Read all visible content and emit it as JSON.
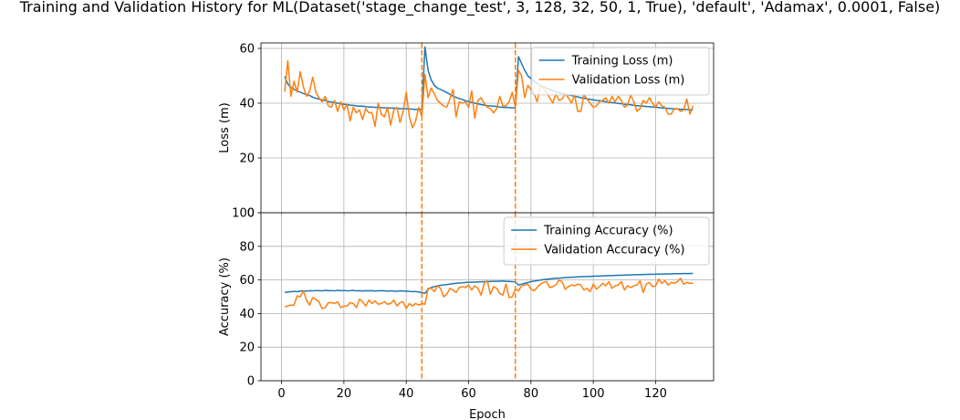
{
  "figure": {
    "title": "Training and Validation History for ML(Dataset('stage_change_test', 3, 128, 32, 50, 1, True), 'default', 'Adamax', 0.0001, False)"
  },
  "colors": {
    "training": "#1f77b4",
    "validation": "#ff7f0e",
    "stage_marker": "#ff7f0e",
    "grid": "#b0b0b0"
  },
  "chart_data": [
    {
      "type": "line",
      "ylabel": "Loss (m)",
      "xlabel": "",
      "xlim": [
        -6.6,
        138.6
      ],
      "ylim": [
        0,
        62
      ],
      "x_ticks": [
        0,
        20,
        40,
        60,
        80,
        100,
        120
      ],
      "y_ticks": [
        0,
        20,
        40,
        60
      ],
      "grid": true,
      "legend_position": "upper right",
      "vertical_markers": [
        45,
        75
      ],
      "x": [
        1,
        2,
        3,
        4,
        5,
        6,
        7,
        8,
        9,
        10,
        11,
        12,
        13,
        14,
        15,
        16,
        17,
        18,
        19,
        20,
        21,
        22,
        23,
        24,
        25,
        26,
        27,
        28,
        29,
        30,
        31,
        32,
        33,
        34,
        35,
        36,
        37,
        38,
        39,
        40,
        41,
        42,
        43,
        44,
        45,
        46,
        47,
        48,
        49,
        50,
        51,
        52,
        53,
        54,
        55,
        56,
        57,
        58,
        59,
        60,
        61,
        62,
        63,
        64,
        65,
        66,
        67,
        68,
        69,
        70,
        71,
        72,
        73,
        74,
        75,
        76,
        77,
        78,
        79,
        80,
        81,
        82,
        83,
        84,
        85,
        86,
        87,
        88,
        89,
        90,
        91,
        92,
        93,
        94,
        95,
        96,
        97,
        98,
        99,
        100,
        101,
        102,
        103,
        104,
        105,
        106,
        107,
        108,
        109,
        110,
        111,
        112,
        113,
        114,
        115,
        116,
        117,
        118,
        119,
        120,
        121,
        122,
        123,
        124,
        125,
        126,
        127,
        128,
        129,
        130,
        131,
        132
      ],
      "series": [
        {
          "name": "Training Loss (m)",
          "values": [
            49.8,
            47.0,
            45.7,
            45.0,
            44.5,
            44.0,
            43.5,
            43.2,
            42.8,
            42.2,
            41.8,
            41.5,
            41.2,
            41.0,
            40.6,
            40.4,
            40.2,
            40.0,
            39.8,
            39.6,
            39.5,
            39.3,
            39.2,
            39.0,
            38.9,
            38.9,
            38.7,
            38.6,
            38.6,
            38.5,
            38.4,
            38.4,
            38.3,
            38.3,
            38.2,
            38.2,
            38.1,
            38.0,
            38.0,
            37.9,
            37.9,
            37.8,
            37.7,
            37.8,
            37.7,
            60.5,
            52.0,
            48.5,
            46.5,
            45.5,
            45.0,
            44.5,
            43.9,
            43.2,
            42.6,
            42.1,
            41.7,
            41.3,
            40.9,
            40.6,
            40.3,
            40.0,
            39.8,
            39.5,
            39.3,
            39.1,
            39.0,
            38.9,
            38.8,
            38.6,
            38.5,
            38.4,
            38.4,
            38.3,
            38.3,
            57.0,
            54.5,
            52.0,
            50.0,
            49.0,
            48.0,
            47.2,
            46.5,
            46.0,
            45.5,
            45.0,
            44.6,
            44.2,
            43.9,
            43.6,
            43.3,
            43.0,
            42.8,
            42.5,
            42.3,
            42.0,
            41.8,
            41.6,
            41.4,
            41.2,
            41.0,
            40.9,
            40.7,
            40.5,
            40.4,
            40.2,
            40.1,
            39.9,
            39.8,
            39.6,
            39.5,
            39.4,
            39.2,
            39.1,
            39.0,
            38.9,
            38.8,
            38.7,
            38.6,
            38.5,
            38.4,
            38.3,
            38.2,
            38.1,
            38.0,
            37.9,
            37.9,
            37.8,
            37.7,
            37.7,
            37.6,
            37.5
          ]
        },
        {
          "name": "Validation Loss (m)",
          "values": [
            44.2,
            55.5,
            42.5,
            48.0,
            44.0,
            51.5,
            46.0,
            42.5,
            44.5,
            49.5,
            44.0,
            42.0,
            40.5,
            42.5,
            39.0,
            38.5,
            41.0,
            37.0,
            40.5,
            37.5,
            39.5,
            33.5,
            38.5,
            36.5,
            37.5,
            34.0,
            38.0,
            36.5,
            36.5,
            31.5,
            40.0,
            36.0,
            35.0,
            38.5,
            32.0,
            37.5,
            38.5,
            33.0,
            37.0,
            44.0,
            35.0,
            31.0,
            33.5,
            38.5,
            35.0,
            50.5,
            42.0,
            45.5,
            43.5,
            41.0,
            40.0,
            39.0,
            38.5,
            41.5,
            45.0,
            35.0,
            40.5,
            40.0,
            40.5,
            38.5,
            44.5,
            34.5,
            41.0,
            42.0,
            40.0,
            38.5,
            38.0,
            36.5,
            38.0,
            42.5,
            39.0,
            39.0,
            40.5,
            44.0,
            38.5,
            52.0,
            50.0,
            42.0,
            46.5,
            45.0,
            43.5,
            40.5,
            46.5,
            45.5,
            44.0,
            42.0,
            40.0,
            43.5,
            41.0,
            41.5,
            43.5,
            42.0,
            40.0,
            43.0,
            37.0,
            37.0,
            43.0,
            41.5,
            40.0,
            38.5,
            39.0,
            40.5,
            41.0,
            42.0,
            40.0,
            42.5,
            40.5,
            42.5,
            41.0,
            38.5,
            39.5,
            43.0,
            40.5,
            37.0,
            38.0,
            41.0,
            40.0,
            42.0,
            40.0,
            38.5,
            40.5,
            39.0,
            38.5,
            36.0,
            36.0,
            38.0,
            38.0,
            37.0,
            37.5,
            41.5,
            36.0,
            39.0
          ]
        }
      ]
    },
    {
      "type": "line",
      "ylabel": "Accuracy (%)",
      "xlabel": "Epoch",
      "xlim": [
        -6.6,
        138.6
      ],
      "ylim": [
        0,
        100
      ],
      "x_ticks": [
        0,
        20,
        40,
        60,
        80,
        100,
        120
      ],
      "y_ticks": [
        0,
        20,
        40,
        60,
        80,
        100
      ],
      "grid": true,
      "legend_position": "upper right",
      "vertical_markers": [
        45,
        75
      ],
      "x": [
        1,
        2,
        3,
        4,
        5,
        6,
        7,
        8,
        9,
        10,
        11,
        12,
        13,
        14,
        15,
        16,
        17,
        18,
        19,
        20,
        21,
        22,
        23,
        24,
        25,
        26,
        27,
        28,
        29,
        30,
        31,
        32,
        33,
        34,
        35,
        36,
        37,
        38,
        39,
        40,
        41,
        42,
        43,
        44,
        45,
        46,
        47,
        48,
        49,
        50,
        51,
        52,
        53,
        54,
        55,
        56,
        57,
        58,
        59,
        60,
        61,
        62,
        63,
        64,
        65,
        66,
        67,
        68,
        69,
        70,
        71,
        72,
        73,
        74,
        75,
        76,
        77,
        78,
        79,
        80,
        81,
        82,
        83,
        84,
        85,
        86,
        87,
        88,
        89,
        90,
        91,
        92,
        93,
        94,
        95,
        96,
        97,
        98,
        99,
        100,
        101,
        102,
        103,
        104,
        105,
        106,
        107,
        108,
        109,
        110,
        111,
        112,
        113,
        114,
        115,
        116,
        117,
        118,
        119,
        120,
        121,
        122,
        123,
        124,
        125,
        126,
        127,
        128,
        129,
        130,
        131,
        132
      ],
      "series": [
        {
          "name": "Training Accuracy (%)",
          "values": [
            52.5,
            52.8,
            53.0,
            53.2,
            53.0,
            53.4,
            53.5,
            53.3,
            53.6,
            53.5,
            53.7,
            53.6,
            53.5,
            53.8,
            53.6,
            53.7,
            53.5,
            53.8,
            53.6,
            53.7,
            53.5,
            53.6,
            53.8,
            53.5,
            53.6,
            53.4,
            53.6,
            53.5,
            53.6,
            53.4,
            53.5,
            53.6,
            53.5,
            53.3,
            53.5,
            53.4,
            53.2,
            53.5,
            53.4,
            53.3,
            53.2,
            53.0,
            53.1,
            52.8,
            52.5,
            52.0,
            54.5,
            55.5,
            56.0,
            56.5,
            56.8,
            57.0,
            57.3,
            57.5,
            57.8,
            58.0,
            58.2,
            58.3,
            58.5,
            58.6,
            58.6,
            58.7,
            58.8,
            58.9,
            59.0,
            59.0,
            59.1,
            59.2,
            59.2,
            59.3,
            59.3,
            59.2,
            59.1,
            59.0,
            58.8,
            57.0,
            57.5,
            58.0,
            58.5,
            59.0,
            59.3,
            59.6,
            59.9,
            60.2,
            60.4,
            60.6,
            60.8,
            61.0,
            61.1,
            61.2,
            61.4,
            61.5,
            61.6,
            61.7,
            61.8,
            61.9,
            62.0,
            62.0,
            62.1,
            62.2,
            62.3,
            62.3,
            62.4,
            62.5,
            62.6,
            62.6,
            62.7,
            62.8,
            62.8,
            62.9,
            63.0,
            63.0,
            63.1,
            63.1,
            63.2,
            63.2,
            63.3,
            63.3,
            63.4,
            63.4,
            63.5,
            63.5,
            63.5,
            63.6,
            63.6,
            63.7,
            63.7,
            63.7,
            63.8,
            63.8,
            63.8,
            63.9
          ]
        },
        {
          "name": "Validation Accuracy (%)",
          "values": [
            44.0,
            44.5,
            45.0,
            45.0,
            50.5,
            50.0,
            53.5,
            48.0,
            45.0,
            49.5,
            48.5,
            47.0,
            43.0,
            43.5,
            46.5,
            46.5,
            46.0,
            47.0,
            43.5,
            44.5,
            44.5,
            46.5,
            46.0,
            43.5,
            48.5,
            47.0,
            44.5,
            48.0,
            46.0,
            47.5,
            45.5,
            46.0,
            47.0,
            45.5,
            46.0,
            48.0,
            44.5,
            46.5,
            47.0,
            43.0,
            46.0,
            44.5,
            46.0,
            45.0,
            46.0,
            45.5,
            55.0,
            55.0,
            53.0,
            56.5,
            55.0,
            50.0,
            51.5,
            55.0,
            54.0,
            52.5,
            55.5,
            56.0,
            55.5,
            57.0,
            54.0,
            56.5,
            55.0,
            51.0,
            58.0,
            59.5,
            51.5,
            56.0,
            55.0,
            52.0,
            51.0,
            57.5,
            49.5,
            50.0,
            54.5,
            53.5,
            56.5,
            57.0,
            57.5,
            54.5,
            53.5,
            55.5,
            57.5,
            58.5,
            59.0,
            55.5,
            56.0,
            57.0,
            60.0,
            59.0,
            54.5,
            56.0,
            57.0,
            56.5,
            57.5,
            57.0,
            54.0,
            55.0,
            53.0,
            57.5,
            54.5,
            56.0,
            58.0,
            56.5,
            59.0,
            55.0,
            56.5,
            57.0,
            59.0,
            54.0,
            56.5,
            55.5,
            56.5,
            57.0,
            59.5,
            52.5,
            57.5,
            58.5,
            56.0,
            56.5,
            60.5,
            58.0,
            59.5,
            57.0,
            58.5,
            58.0,
            59.0,
            61.0,
            57.5,
            58.5,
            58.0,
            58.0
          ]
        }
      ]
    }
  ]
}
